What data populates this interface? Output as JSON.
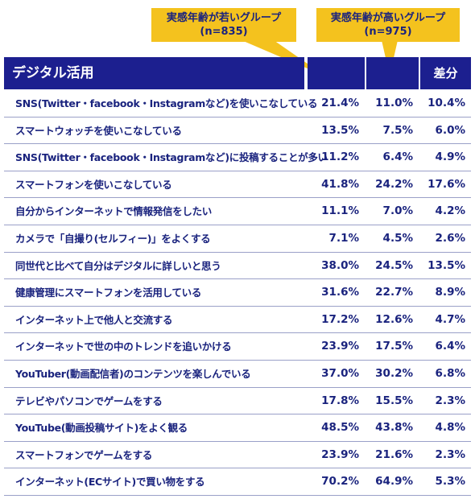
{
  "callouts": {
    "young": {
      "line1": "実感年齢が若いグループ",
      "line2": "(n=835)"
    },
    "old": {
      "line1": "実感年齢が高いグループ",
      "line2": "(n=975)"
    }
  },
  "colors": {
    "header_bg": "#1c1f8f",
    "callout_bg": "#f4c21e",
    "text": "#1a237e"
  },
  "chart_data": {
    "type": "table",
    "header": {
      "category": "デジタル活用",
      "young": "",
      "old": "",
      "diff": "差分"
    },
    "rows": [
      {
        "label": "SNS(Twitter・facebook・Instagramなど)を使いこなしている",
        "young": "21.4%",
        "old": "11.0%",
        "diff": "10.4%"
      },
      {
        "label": "スマートウォッチを使いこなしている",
        "young": "13.5%",
        "old": "7.5%",
        "diff": "6.0%"
      },
      {
        "label": "SNS(Twitter・facebook・Instagramなど)に投稿することが多い",
        "young": "11.2%",
        "old": "6.4%",
        "diff": "4.9%"
      },
      {
        "label": "スマートフォンを使いこなしている",
        "young": "41.8%",
        "old": "24.2%",
        "diff": "17.6%"
      },
      {
        "label": "自分からインターネットで情報発信をしたい",
        "young": "11.1%",
        "old": "7.0%",
        "diff": "4.2%"
      },
      {
        "label": "カメラで「自撮り(セルフィー)」をよくする",
        "young": "7.1%",
        "old": "4.5%",
        "diff": "2.6%"
      },
      {
        "label": "同世代と比べて自分はデジタルに詳しいと思う",
        "young": "38.0%",
        "old": "24.5%",
        "diff": "13.5%"
      },
      {
        "label": "健康管理にスマートフォンを活用している",
        "young": "31.6%",
        "old": "22.7%",
        "diff": "8.9%"
      },
      {
        "label": "インターネット上で他人と交流する",
        "young": "17.2%",
        "old": "12.6%",
        "diff": "4.7%"
      },
      {
        "label": "インターネットで世の中のトレンドを追いかける",
        "young": "23.9%",
        "old": "17.5%",
        "diff": "6.4%"
      },
      {
        "label": "YouTuber(動画配信者)のコンテンツを楽しんでいる",
        "young": "37.0%",
        "old": "30.2%",
        "diff": "6.8%"
      },
      {
        "label": "テレビやパソコンでゲームをする",
        "young": "17.8%",
        "old": "15.5%",
        "diff": "2.3%"
      },
      {
        "label": "YouTube(動画投稿サイト)をよく観る",
        "young": "48.5%",
        "old": "43.8%",
        "diff": "4.8%"
      },
      {
        "label": "スマートフォンでゲームをする",
        "young": "23.9%",
        "old": "21.6%",
        "diff": "2.3%"
      },
      {
        "label": "インターネット(ECサイト)で買い物をする",
        "young": "70.2%",
        "old": "64.9%",
        "diff": "5.3%"
      }
    ]
  }
}
